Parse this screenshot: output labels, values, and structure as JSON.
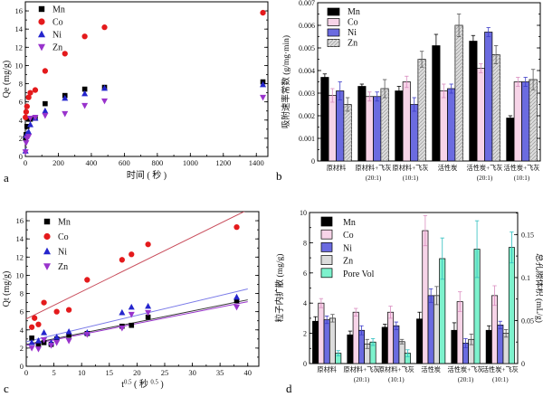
{
  "figure": {
    "background": "#ffffff",
    "panels": [
      "a",
      "b",
      "c",
      "d"
    ]
  },
  "chart_data": [
    {
      "panel_letter": "a",
      "type": "scatter",
      "xlabel": "时间 ( 秒 )",
      "ylabel": "Qe (mg/g)",
      "xlim": [
        0,
        1470
      ],
      "ylim": [
        0,
        17
      ],
      "xtick_vals": [
        0,
        200,
        400,
        600,
        800,
        1000,
        1200,
        1400
      ],
      "xtick_labels": [
        "0",
        "200",
        "400",
        "600",
        "800",
        "1000",
        "1200",
        "1400"
      ],
      "xminor_step": 100,
      "ytick_vals": [
        0,
        2,
        4,
        6,
        8,
        10,
        12,
        14,
        16
      ],
      "ytick_labels": [
        "0",
        "2",
        "4",
        "6",
        "8",
        "10",
        "12",
        "14",
        "16"
      ],
      "yminor_step": 1,
      "legend_position": "upper-left",
      "series": [
        {
          "name": "Mn",
          "marker": "square",
          "color": "#000000",
          "x": [
            1,
            5,
            10,
            20,
            30,
            60,
            120,
            240,
            360,
            480,
            1440
          ],
          "y": [
            2.0,
            2.4,
            3.3,
            4.1,
            4.1,
            4.2,
            5.8,
            6.7,
            7.4,
            7.6,
            8.2
          ]
        },
        {
          "name": "Co",
          "marker": "circle",
          "color": "#e41a1c",
          "x": [
            1,
            5,
            10,
            20,
            30,
            60,
            120,
            240,
            360,
            480,
            1440
          ],
          "y": [
            4.3,
            4.9,
            5.5,
            6.5,
            7.0,
            7.3,
            9.4,
            11.3,
            13.2,
            14.2,
            15.8
          ]
        },
        {
          "name": "Ni",
          "marker": "triangle-up",
          "color": "#2525cd",
          "x": [
            1,
            5,
            10,
            20,
            30,
            60,
            120,
            240,
            360,
            480,
            1440
          ],
          "y": [
            0.6,
            2.3,
            2.5,
            2.7,
            3.5,
            4.2,
            5.0,
            6.4,
            6.9,
            7.5,
            7.9
          ]
        },
        {
          "name": "Zn",
          "marker": "triangle-down",
          "color": "#9933cc",
          "x": [
            1,
            5,
            10,
            20,
            30,
            60,
            120,
            240,
            360,
            480,
            1440
          ],
          "y": [
            0.5,
            1.5,
            2.0,
            2.2,
            4.2,
            4.3,
            4.5,
            4.7,
            5.6,
            6.1,
            6.5
          ]
        }
      ]
    },
    {
      "panel_letter": "b",
      "type": "bar",
      "ylabel": "吸附速率常数 (g/mg·min)",
      "ylim": [
        0,
        0.007
      ],
      "ytick_vals": [
        0,
        0.001,
        0.002,
        0.003,
        0.004,
        0.005,
        0.006,
        0.007
      ],
      "ytick_labels": [
        "0",
        "0.001",
        "0.002",
        "0.003",
        "0.004",
        "0.005",
        "0.006",
        "0.007"
      ],
      "yminor_step": 0.0005,
      "legend_position": "upper-left",
      "categories": [
        {
          "line1": "原材料",
          "line2": ""
        },
        {
          "line1": "原材料+飞灰",
          "line2": "(20:1)"
        },
        {
          "line1": "原材料+飞灰",
          "line2": "(10:1)"
        },
        {
          "line1": "活性炭",
          "line2": ""
        },
        {
          "line1": "活性炭+飞灰",
          "line2": "(20:1)"
        },
        {
          "line1": "活性炭+飞灰",
          "line2": "(10:1)"
        }
      ],
      "series": [
        {
          "name": "Mn",
          "color": "#000000",
          "err_color": "#000000",
          "text_color": "#000000",
          "values": [
            0.0037,
            0.0033,
            0.0031,
            0.0051,
            0.0053,
            0.0019
          ],
          "errors": [
            0.00015,
            0.0001,
            0.0002,
            0.0005,
            0.00025,
            0.0001
          ]
        },
        {
          "name": "Co",
          "color": "#f7d4e8",
          "err_color": "#d98cbf",
          "text_color": "#cc2266",
          "values": [
            0.0029,
            0.00285,
            0.0035,
            0.0031,
            0.0041,
            0.0035
          ],
          "errors": [
            0.0003,
            0.0002,
            0.00025,
            0.0003,
            0.0002,
            0.0002
          ]
        },
        {
          "name": "Ni",
          "color": "#6b6be0",
          "err_color": "#3c3cc8",
          "text_color": "#22229a",
          "values": [
            0.0031,
            0.00285,
            0.0025,
            0.0032,
            0.0057,
            0.0035
          ],
          "errors": [
            0.0004,
            0.0002,
            0.0003,
            0.0002,
            0.0002,
            0.0002
          ]
        },
        {
          "name": "Zn",
          "color": "#dcdcdc",
          "hatch": true,
          "err_color": "#555555",
          "text_color": "#97a3b4",
          "values": [
            0.0025,
            0.0032,
            0.0045,
            0.006,
            0.0047,
            0.0036
          ],
          "errors": [
            0.0003,
            0.0004,
            0.00035,
            0.0005,
            0.0004,
            0.00045
          ]
        }
      ]
    },
    {
      "panel_letter": "c",
      "type": "scatter",
      "xlabel": "t^0.5（秒^0.5）",
      "xlabel_rich": [
        {
          "t": "t"
        },
        {
          "t": "0.5",
          "sup": true
        },
        {
          "t": " ( 秒 "
        },
        {
          "t": "0.5",
          "sup": true
        },
        {
          "t": " )"
        }
      ],
      "ylabel": "Qt (mg/g)",
      "xlim": [
        0,
        42
      ],
      "ylim": [
        0,
        17
      ],
      "xtick_vals": [
        0,
        5,
        10,
        15,
        20,
        25,
        30,
        35,
        40
      ],
      "xtick_labels": [
        "0",
        "5",
        "10",
        "15",
        "20",
        "25",
        "30",
        "35",
        "40"
      ],
      "xminor_step": 2.5,
      "ytick_vals": [
        0,
        2,
        4,
        6,
        8,
        10,
        12,
        14,
        16
      ],
      "ytick_labels": [
        "0",
        "2",
        "4",
        "6",
        "8",
        "10",
        "12",
        "14",
        "16"
      ],
      "yminor_step": 1,
      "legend_position": "upper-left",
      "series": [
        {
          "name": "Mn",
          "marker": "square",
          "color": "#000000",
          "x": [
            1,
            2.2,
            3.2,
            4.5,
            5.5,
            7.7,
            11,
            17.3,
            19,
            22,
            38
          ],
          "y": [
            3.1,
            2.4,
            2.6,
            2.4,
            3.0,
            3.4,
            3.6,
            4.4,
            4.5,
            5.4,
            7.2
          ]
        },
        {
          "name": "Co",
          "marker": "circle",
          "color": "#e41a1c",
          "x": [
            1,
            1.5,
            2.2,
            3.2,
            5.5,
            7.7,
            11,
            17.3,
            19,
            22,
            38
          ],
          "y": [
            4.3,
            5.3,
            4.6,
            7.0,
            6.0,
            6.2,
            9.5,
            11.7,
            12.3,
            13.4,
            15.3
          ]
        },
        {
          "name": "Ni",
          "marker": "triangle-up",
          "color": "#2525cd",
          "x": [
            1,
            2.2,
            3.2,
            4.5,
            5.5,
            7.7,
            11,
            17.3,
            19,
            22,
            38
          ],
          "y": [
            2.6,
            2.8,
            3.7,
            2.6,
            3.2,
            3.8,
            3.7,
            5.9,
            6.5,
            6.6,
            7.6
          ]
        },
        {
          "name": "Zn",
          "marker": "triangle-down",
          "color": "#9933cc",
          "x": [
            1,
            2.2,
            3.2,
            4.5,
            5.5,
            7.7,
            11,
            17.3,
            19,
            22,
            38
          ],
          "y": [
            2.0,
            1.9,
            2.9,
            2.3,
            2.6,
            2.8,
            3.5,
            4.2,
            5.7,
            5.9,
            6.5
          ]
        }
      ],
      "fit_lines": [
        {
          "series": "Co",
          "color": "#c84b5a",
          "x": [
            0,
            40
          ],
          "y": [
            5.2,
            17.2
          ]
        },
        {
          "series": "Ni",
          "color": "#7a7ae8",
          "x": [
            0,
            40
          ],
          "y": [
            2.7,
            8.5
          ]
        },
        {
          "series": "Mn",
          "color": "#333333",
          "x": [
            0,
            40
          ],
          "y": [
            2.4,
            7.3
          ]
        },
        {
          "series": "Zn",
          "color": "#9933cc",
          "x": [
            0,
            40
          ],
          "y": [
            2.3,
            7.1
          ]
        }
      ]
    },
    {
      "panel_letter": "d",
      "type": "bar",
      "ylabel": "粒子内扩散 (mg/g)",
      "ylabel_right": "总孔隙体积 (mL/g)",
      "ylim": [
        0,
        10
      ],
      "ylim_right": [
        0,
        0.1756
      ],
      "ytick_vals": [
        0,
        2,
        4,
        6,
        8,
        10
      ],
      "ytick_labels": [
        "0",
        "2",
        "4",
        "6",
        "8",
        "10"
      ],
      "yminor_step": 1,
      "rtick_vals": [
        0,
        0.05,
        0.1,
        0.15
      ],
      "rtick_labels": [
        "0",
        "0.05",
        "0.1",
        "0.15"
      ],
      "rminor_step": 0.025,
      "legend_position": "upper-left",
      "categories": [
        {
          "line1": "原材料",
          "line2": ""
        },
        {
          "line1": "原材料+飞灰",
          "line2": "(20:1)"
        },
        {
          "line1": "原材料+飞灰",
          "line2": "(10:1)"
        },
        {
          "line1": "活性炭",
          "line2": ""
        },
        {
          "line1": "活性炭+飞灰",
          "line2": "(20:1)"
        },
        {
          "line1": "活性炭+飞灰",
          "line2": "(10:1)"
        }
      ],
      "series": [
        {
          "name": "Mn",
          "color": "#000000",
          "err_color": "#000000",
          "text_color": "#000000",
          "values": [
            2.8,
            1.9,
            2.4,
            2.95,
            2.2,
            2.2
          ],
          "errors": [
            0.3,
            0.25,
            0.2,
            0.45,
            0.5,
            0.3
          ]
        },
        {
          "name": "Co",
          "color": "#f7d4e8",
          "err_color": "#d98cbf",
          "text_color": "#cc2266",
          "values": [
            4.0,
            3.4,
            3.4,
            8.8,
            4.1,
            4.5
          ],
          "errors": [
            0.3,
            0.25,
            0.4,
            1.0,
            0.65,
            0.65
          ]
        },
        {
          "name": "Ni",
          "color": "#6b6be0",
          "err_color": "#3c3cc8",
          "text_color": "#22229a",
          "values": [
            2.9,
            2.2,
            2.5,
            4.5,
            1.35,
            2.55
          ],
          "errors": [
            0.25,
            0.3,
            0.25,
            0.45,
            0.3,
            0.25
          ]
        },
        {
          "name": "Zn",
          "color": "#dcdcdc",
          "err_color": "#555555",
          "text_color": "#97a3b4",
          "values": [
            3.0,
            1.3,
            1.45,
            4.5,
            1.6,
            2.0
          ],
          "errors": [
            0.25,
            0.3,
            0.15,
            0.6,
            0.35,
            0.25
          ]
        },
        {
          "name": "Pore Vol",
          "color": "#7df2cd",
          "axis": "right",
          "err_color": "#2fbfbf",
          "text_color": "#55dddd",
          "values": [
            0.012,
            0.025,
            0.012,
            0.122,
            0.133,
            0.135
          ],
          "errors": [
            0.003,
            0.004,
            0.004,
            0.024,
            0.033,
            0.018
          ]
        }
      ]
    }
  ]
}
